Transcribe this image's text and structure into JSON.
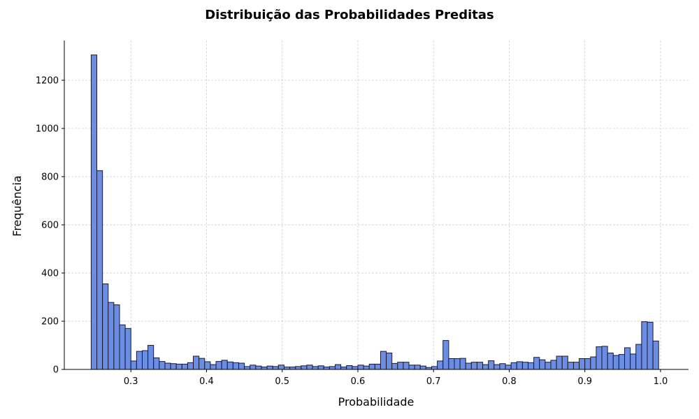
{
  "chart_data": {
    "type": "bar",
    "title": "Distribuição das Probabilidades Preditas",
    "xlabel": "Probabilidade",
    "ylabel": "Frequência",
    "xlim": [
      0.212,
      1.037
    ],
    "ylim": [
      0,
      1365
    ],
    "xticks": [
      0.3,
      0.4,
      0.5,
      0.6,
      0.7,
      0.8,
      0.9,
      1.0
    ],
    "xtick_labels": [
      "0.3",
      "0.4",
      "0.5",
      "0.6",
      "0.7",
      "0.8",
      "0.9",
      "1.0"
    ],
    "yticks": [
      0,
      200,
      400,
      600,
      800,
      1000,
      1200
    ],
    "ytick_labels": [
      "0",
      "200",
      "400",
      "600",
      "800",
      "1000",
      "1200"
    ],
    "grid": true,
    "bin_start": 0.2475,
    "bin_end": 0.9975,
    "bar_color": "#6b8de3",
    "edge_color": "#1a1a2e",
    "values": [
      1305,
      825,
      355,
      278,
      268,
      185,
      170,
      35,
      75,
      78,
      100,
      48,
      33,
      26,
      24,
      22,
      22,
      28,
      55,
      46,
      32,
      20,
      33,
      38,
      31,
      28,
      26,
      12,
      18,
      14,
      10,
      14,
      12,
      18,
      10,
      10,
      12,
      15,
      18,
      12,
      15,
      10,
      12,
      20,
      10,
      16,
      12,
      18,
      14,
      22,
      22,
      75,
      68,
      25,
      30,
      30,
      18,
      18,
      14,
      8,
      12,
      35,
      120,
      45,
      45,
      46,
      26,
      30,
      30,
      20,
      36,
      20,
      24,
      18,
      28,
      32,
      30,
      28,
      50,
      40,
      30,
      38,
      55,
      55,
      30,
      30,
      45,
      45,
      52,
      94,
      96,
      68,
      58,
      62,
      90,
      64,
      104,
      198,
      196,
      118
    ]
  }
}
